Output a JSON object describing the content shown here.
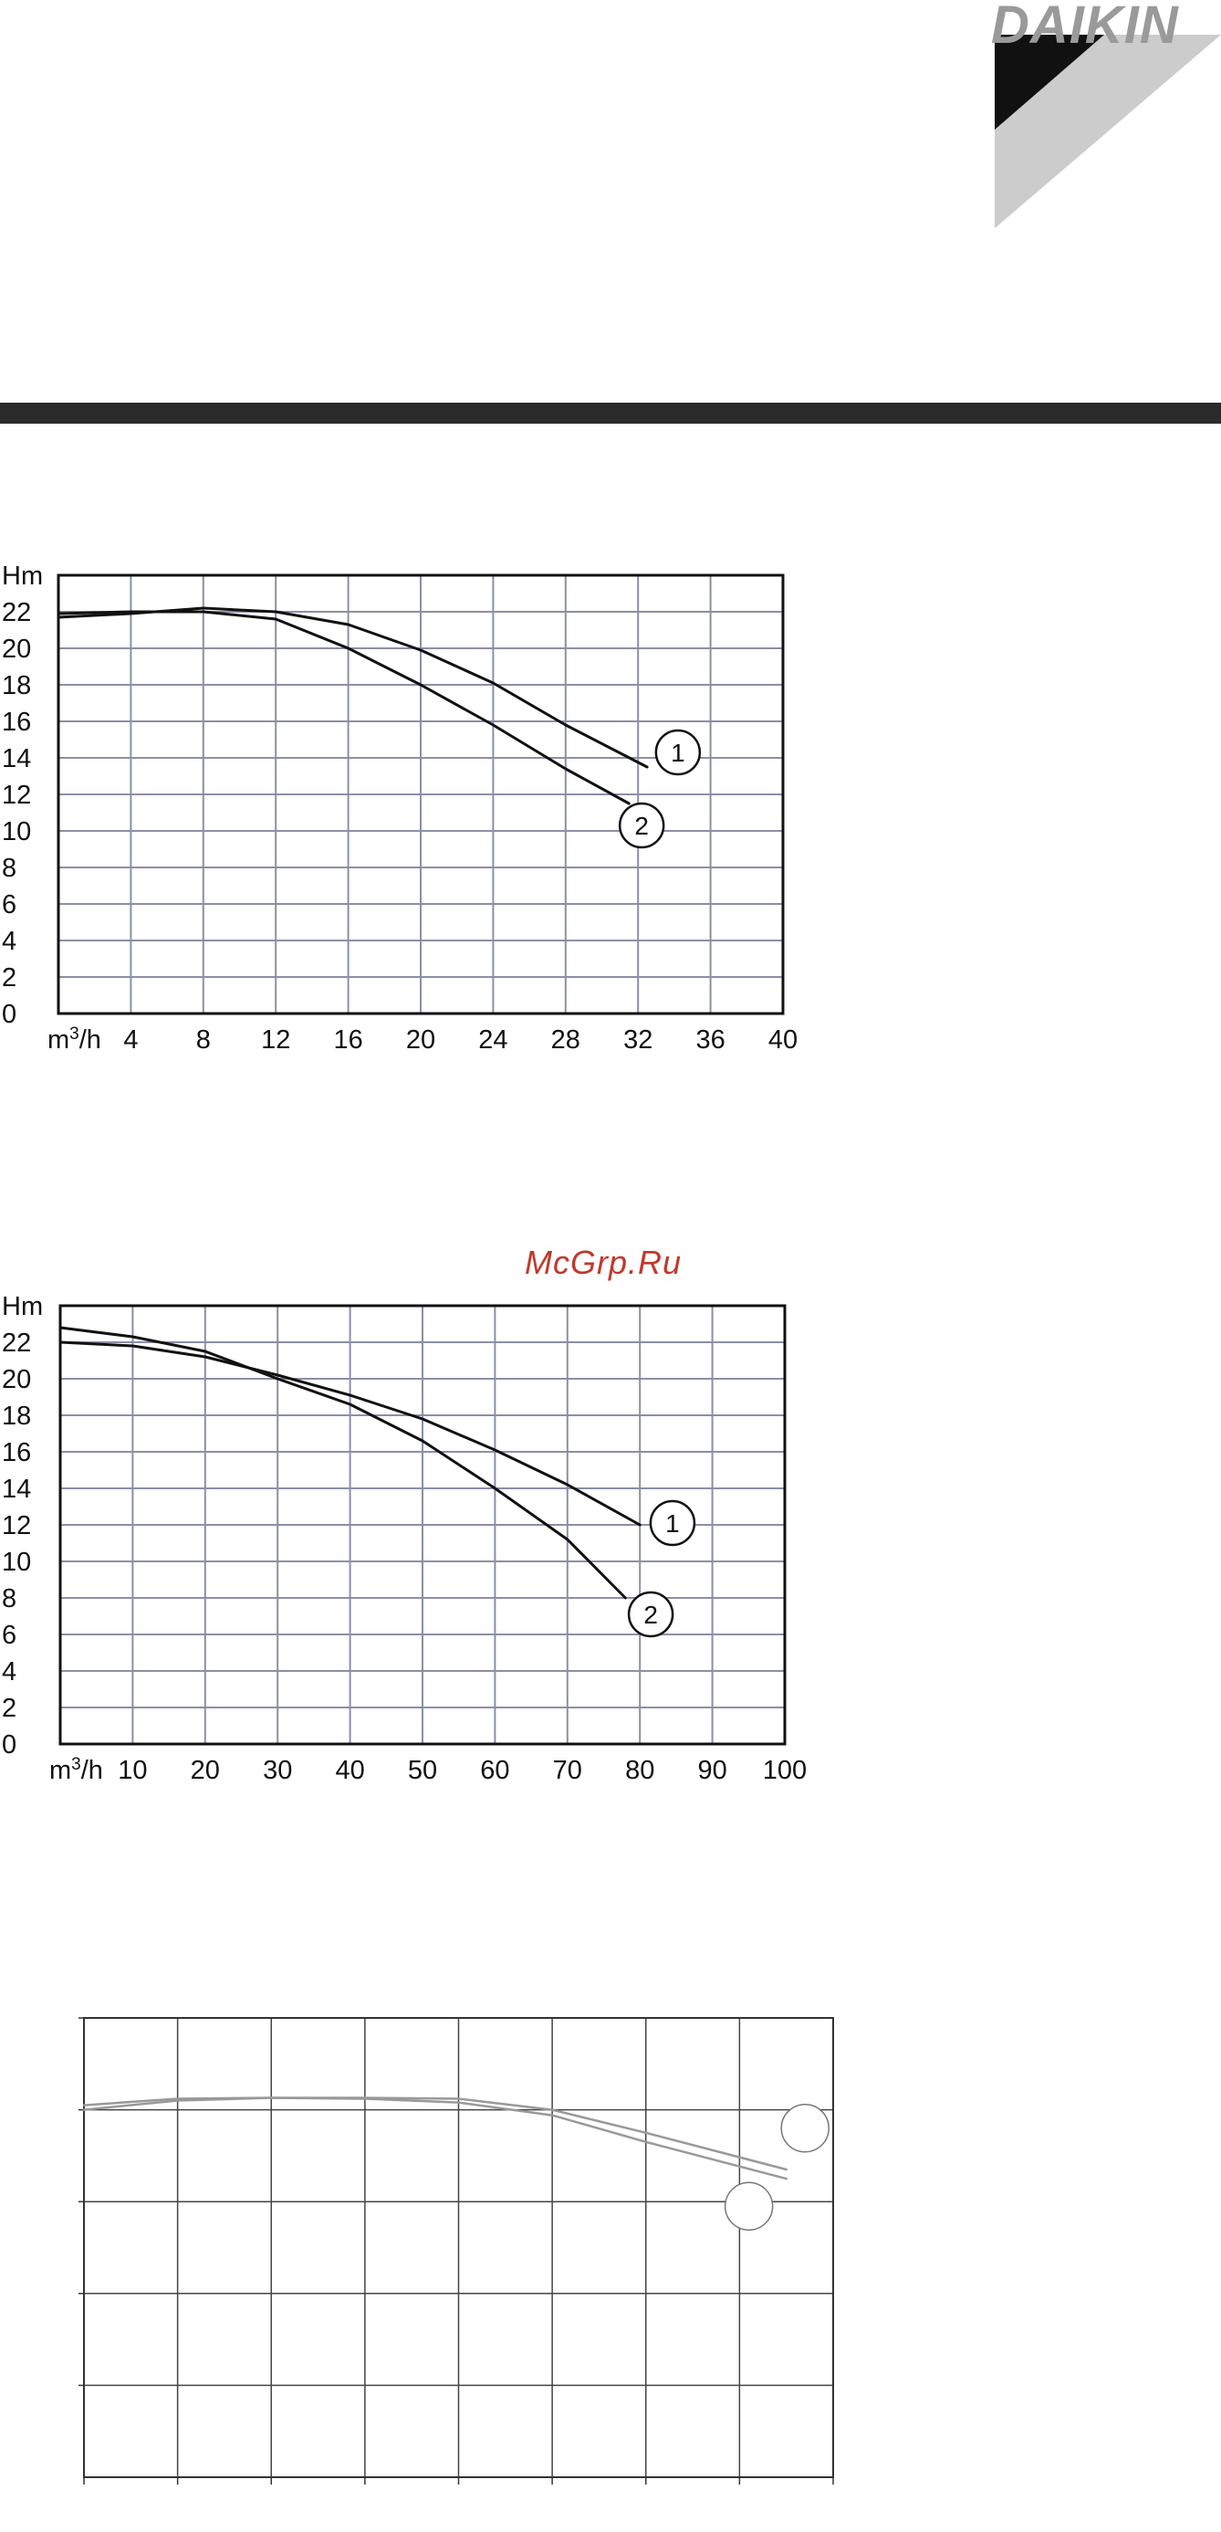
{
  "brand": {
    "logo_text": "DAIKIN"
  },
  "watermark": {
    "text": "McGrp.Ru"
  },
  "colors": {
    "grid": "#8b8fa6",
    "frame": "#111111",
    "curve": "#111111",
    "bar": "#2a2a2a",
    "watermark": "#c0392b",
    "logo_gray": "#9a9a9a",
    "logo_light": "#cccccc",
    "faded": "#999999"
  },
  "chart_data": [
    {
      "type": "line",
      "ylabel": "Hm",
      "xunit": "m³/h",
      "xlim": [
        0,
        40
      ],
      "ylim": [
        0,
        24
      ],
      "xticks": [
        4,
        8,
        12,
        16,
        20,
        24,
        28,
        32,
        36,
        40
      ],
      "yticks": [
        0,
        2,
        4,
        6,
        8,
        10,
        12,
        14,
        16,
        18,
        20,
        22
      ],
      "grid": true,
      "series": [
        {
          "name": "1",
          "points": [
            [
              0,
              21.7
            ],
            [
              4,
              21.9
            ],
            [
              8,
              22.2
            ],
            [
              12,
              22.0
            ],
            [
              16,
              21.3
            ],
            [
              20,
              19.9
            ],
            [
              24,
              18.1
            ],
            [
              28,
              15.8
            ],
            [
              32.5,
              13.5
            ]
          ]
        },
        {
          "name": "2",
          "points": [
            [
              0,
              21.9
            ],
            [
              4,
              22.0
            ],
            [
              8,
              22.0
            ],
            [
              12,
              21.6
            ],
            [
              16,
              20.0
            ],
            [
              20,
              18.0
            ],
            [
              24,
              15.8
            ],
            [
              28,
              13.4
            ],
            [
              31.5,
              11.5
            ]
          ]
        }
      ],
      "markers": [
        {
          "label": "1",
          "x": 34.2,
          "y": 14.3
        },
        {
          "label": "2",
          "x": 32.2,
          "y": 10.3
        }
      ]
    },
    {
      "type": "line",
      "ylabel": "Hm",
      "xunit": "m³/h",
      "xlim": [
        0,
        100
      ],
      "ylim": [
        0,
        24
      ],
      "xticks": [
        10,
        20,
        30,
        40,
        50,
        60,
        70,
        80,
        90,
        100
      ],
      "yticks": [
        0,
        2,
        4,
        6,
        8,
        10,
        12,
        14,
        16,
        18,
        20,
        22
      ],
      "grid": true,
      "series": [
        {
          "name": "1",
          "points": [
            [
              0,
              22.0
            ],
            [
              10,
              21.8
            ],
            [
              20,
              21.2
            ],
            [
              30,
              20.2
            ],
            [
              40,
              19.1
            ],
            [
              50,
              17.8
            ],
            [
              60,
              16.1
            ],
            [
              70,
              14.2
            ],
            [
              80,
              12.0
            ]
          ]
        },
        {
          "name": "2",
          "points": [
            [
              0,
              22.8
            ],
            [
              10,
              22.3
            ],
            [
              20,
              21.5
            ],
            [
              30,
              20.0
            ],
            [
              40,
              18.6
            ],
            [
              50,
              16.6
            ],
            [
              60,
              14.0
            ],
            [
              70,
              11.2
            ],
            [
              78,
              8.0
            ]
          ]
        }
      ],
      "markers": [
        {
          "label": "1",
          "x": 84.5,
          "y": 12.1
        },
        {
          "label": "2",
          "x": 81.5,
          "y": 7.1
        }
      ]
    },
    {
      "type": "line",
      "xlim": [
        0,
        8
      ],
      "ylim": [
        0,
        5
      ],
      "grid": true,
      "faded": true,
      "series": [
        {
          "points": [
            [
              0,
              4.05
            ],
            [
              1,
              4.12
            ],
            [
              2,
              4.13
            ],
            [
              3,
              4.13
            ],
            [
              4,
              4.12
            ],
            [
              5,
              4.0
            ],
            [
              6,
              3.75
            ],
            [
              7.5,
              3.35
            ]
          ]
        },
        {
          "points": [
            [
              0,
              4.0
            ],
            [
              1,
              4.1
            ],
            [
              2,
              4.13
            ],
            [
              3,
              4.12
            ],
            [
              4,
              4.08
            ],
            [
              5,
              3.94
            ],
            [
              6,
              3.65
            ],
            [
              7.5,
              3.25
            ]
          ]
        }
      ],
      "markers": [
        {
          "label": "",
          "x": 7.7,
          "y": 3.8
        },
        {
          "label": "",
          "x": 7.1,
          "y": 2.95
        }
      ]
    }
  ]
}
